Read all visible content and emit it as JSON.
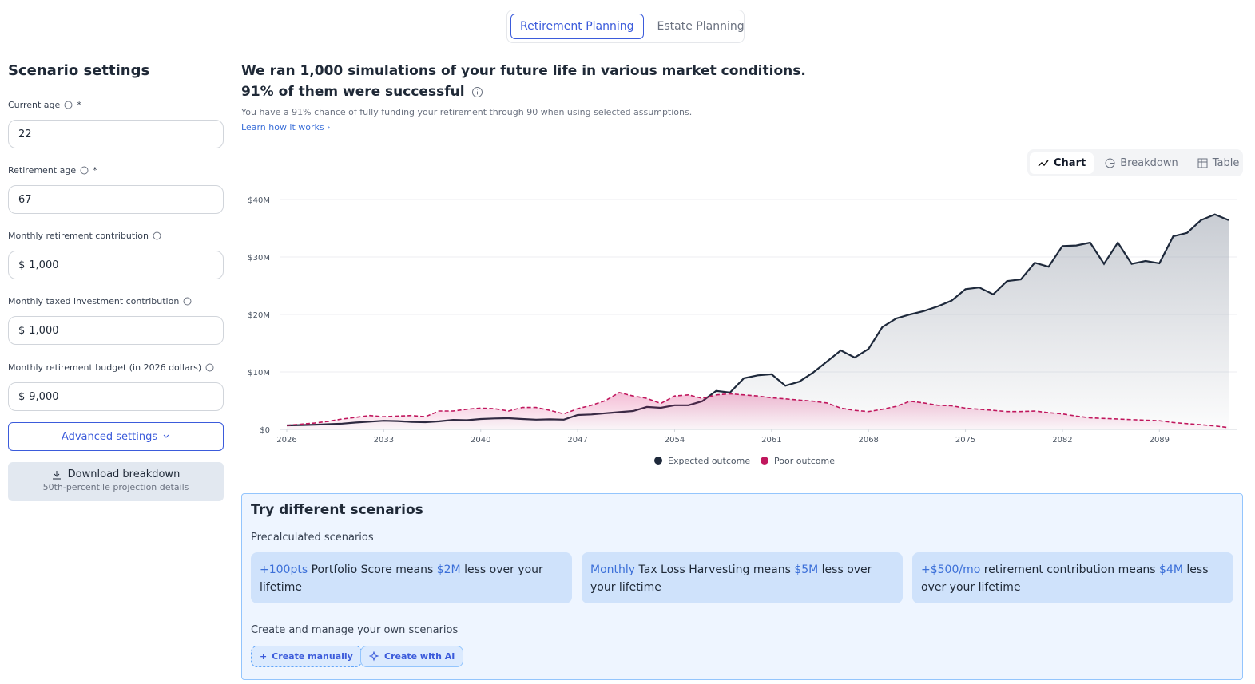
{
  "tabs": [
    "Retirement Planning",
    "Estate Planning"
  ],
  "sidebar": {
    "title": "Scenario settings",
    "fields": [
      {
        "label": "Current age",
        "required": "*",
        "prefix": "",
        "value": "22"
      },
      {
        "label": "Retirement age",
        "required": "*",
        "prefix": "",
        "value": "67"
      },
      {
        "label": "Monthly retirement contribution",
        "required": "",
        "prefix": "$",
        "value": "1,000"
      },
      {
        "label": "Monthly taxed investment contribution",
        "required": "",
        "prefix": "$",
        "value": "1,000"
      },
      {
        "label": "Monthly retirement budget (in 2026 dollars)",
        "required": "",
        "prefix": "$",
        "value": "9,000"
      }
    ],
    "advanced": "Advanced settings",
    "download": {
      "title": "Download breakdown",
      "subtitle": "50th-percentile projection details"
    }
  },
  "summary": {
    "headline1": "We ran 1,000 simulations of your future life in various market conditions.",
    "headline2": "91% of them were successful",
    "detail": "You have a 91% chance of fully funding your retirement through 90 when using selected assumptions.",
    "link": "Learn how it works"
  },
  "views": [
    "Chart",
    "Breakdown",
    "Table"
  ],
  "chart_data": {
    "type": "area",
    "x": [
      2026,
      2027,
      2028,
      2029,
      2030,
      2031,
      2032,
      2033,
      2034,
      2035,
      2036,
      2037,
      2038,
      2039,
      2040,
      2041,
      2042,
      2043,
      2044,
      2045,
      2046,
      2047,
      2048,
      2049,
      2050,
      2051,
      2052,
      2053,
      2054,
      2055,
      2056,
      2057,
      2058,
      2059,
      2060,
      2061,
      2062,
      2063,
      2064,
      2065,
      2066,
      2067,
      2068,
      2069,
      2070,
      2071,
      2072,
      2073,
      2074,
      2075,
      2076,
      2077,
      2078,
      2079,
      2080,
      2081,
      2082,
      2083,
      2084,
      2085,
      2086,
      2087,
      2088,
      2089,
      2090,
      2091,
      2092,
      2093,
      2094
    ],
    "xlim": [
      2026,
      2094
    ],
    "xticks": [
      2026,
      2033,
      2040,
      2047,
      2054,
      2061,
      2068,
      2075,
      2082,
      2089
    ],
    "ylim": [
      0,
      40
    ],
    "yticks": [
      {
        "value": 0,
        "label": "$0"
      },
      {
        "value": 10,
        "label": "$10M"
      },
      {
        "value": 20,
        "label": "$20M"
      },
      {
        "value": 30,
        "label": "$30M"
      },
      {
        "value": 40,
        "label": "$40M"
      }
    ],
    "grid": true,
    "series": [
      {
        "name": "Expected outcome",
        "color": "#1e293b",
        "dashed": false,
        "values": [
          0.7,
          0.75,
          0.8,
          0.9,
          1.0,
          1.2,
          1.35,
          1.5,
          1.45,
          1.3,
          1.25,
          1.4,
          1.65,
          1.6,
          1.8,
          1.9,
          1.95,
          1.8,
          1.7,
          1.75,
          1.7,
          2.5,
          2.6,
          2.8,
          3.0,
          3.2,
          3.9,
          3.75,
          4.2,
          4.2,
          4.9,
          6.7,
          6.4,
          8.9,
          9.4,
          9.6,
          7.6,
          8.3,
          9.9,
          11.8,
          13.75,
          12.5,
          14,
          17.8,
          19.3,
          20,
          20.6,
          21.4,
          22.4,
          24.4,
          24.7,
          23.5,
          25.8,
          26.1,
          29,
          28.3,
          31.9,
          32,
          32.5,
          28.8,
          32.5,
          28.8,
          29.3,
          28.9,
          33.6,
          34.2,
          36.4,
          37.4,
          36.4
        ]
      },
      {
        "name": "Poor outcome",
        "color": "#c0175d",
        "dashed": true,
        "values": [
          0.7,
          0.9,
          1.1,
          1.4,
          1.8,
          2.1,
          2.4,
          2.2,
          2.3,
          2.4,
          2.2,
          3.2,
          3.2,
          3.5,
          3.7,
          3.6,
          3.2,
          3.8,
          3.8,
          3.3,
          2.7,
          3.6,
          4.2,
          5.0,
          6.4,
          5.8,
          5.4,
          4.5,
          5.8,
          6.0,
          5.4,
          6.0,
          6.2,
          6.0,
          5.8,
          5.5,
          5.3,
          5.1,
          4.9,
          4.6,
          3.7,
          3.3,
          3.1,
          3.5,
          4.0,
          4.9,
          4.6,
          4.2,
          4.1,
          3.7,
          3.5,
          3.3,
          3.1,
          3.1,
          3.2,
          2.9,
          2.7,
          2.3,
          2.0,
          1.9,
          1.8,
          1.7,
          1.6,
          1.5,
          1.2,
          1.0,
          0.8,
          0.6,
          0.3
        ]
      }
    ]
  },
  "scenarios": {
    "title": "Try different scenarios",
    "precalc_label": "Precalculated scenarios",
    "cards": [
      {
        "parts": [
          {
            "text": "+100pts",
            "accent": true
          },
          {
            "text": " Portfolio Score means ",
            "accent": false
          },
          {
            "text": "$2M",
            "accent": true
          },
          {
            "text": " less over your lifetime",
            "accent": false
          }
        ]
      },
      {
        "parts": [
          {
            "text": "Monthly",
            "accent": true
          },
          {
            "text": " Tax Loss Harvesting means ",
            "accent": false
          },
          {
            "text": "$5M",
            "accent": true
          },
          {
            "text": " less over your lifetime",
            "accent": false
          }
        ]
      },
      {
        "parts": [
          {
            "text": "+$500/mo",
            "accent": true
          },
          {
            "text": " retirement contribution means ",
            "accent": false
          },
          {
            "text": "$4M",
            "accent": true
          },
          {
            "text": " less over your lifetime",
            "accent": false
          }
        ]
      }
    ],
    "own_label": "Create and manage your own scenarios",
    "buttons": [
      "Create manually",
      "Create with AI"
    ]
  }
}
